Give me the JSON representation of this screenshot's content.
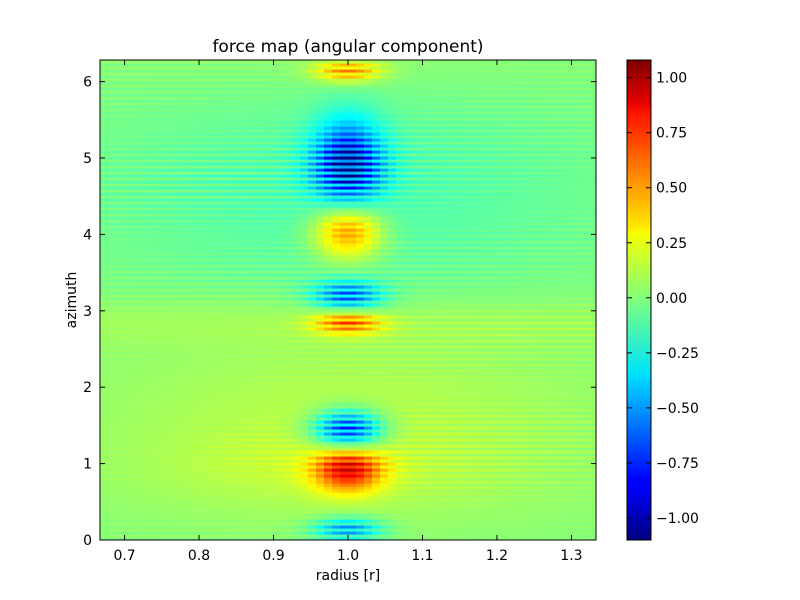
{
  "chart_data": {
    "type": "heatmap",
    "title": "force map (angular component)",
    "xlabel": "radius [r]",
    "ylabel": "azimuth",
    "xlim": [
      0.667,
      1.333
    ],
    "ylim": [
      0,
      6.283
    ],
    "xticks": [
      0.7,
      0.8,
      0.9,
      1.0,
      1.1,
      1.2,
      1.3
    ],
    "xtick_labels": [
      "0.7",
      "0.8",
      "0.9",
      "1.0",
      "1.1",
      "1.2",
      "1.3"
    ],
    "yticks": [
      0,
      1,
      2,
      3,
      4,
      5,
      6
    ],
    "ytick_labels": [
      "0",
      "1",
      "2",
      "3",
      "4",
      "5",
      "6"
    ],
    "colormap": "jet",
    "colorbar": {
      "vmin": -1.1,
      "vmax": 1.08,
      "ticks": [
        -1.0,
        -0.75,
        -0.5,
        -0.25,
        0.0,
        0.25,
        0.5,
        0.75,
        1.0
      ],
      "tick_labels": [
        "−1.00",
        "−0.75",
        "−0.50",
        "−0.25",
        "0.00",
        "0.25",
        "0.50",
        "0.75",
        "1.00"
      ]
    },
    "features": [
      {
        "azimuth_range": [
          0.65,
          1.2
        ],
        "radius_center": 1.0,
        "sign": "positive",
        "peak": 1.0
      },
      {
        "azimuth_range": [
          1.2,
          1.7
        ],
        "radius_center": 1.0,
        "sign": "negative",
        "peak": -1.0
      },
      {
        "azimuth_range": [
          2.7,
          3.0
        ],
        "radius_center": 1.0,
        "sign": "positive",
        "peak": 0.7
      },
      {
        "azimuth_range": [
          3.0,
          3.4
        ],
        "radius_center": 1.0,
        "sign": "negative",
        "peak": -0.7
      },
      {
        "azimuth_range": [
          3.7,
          4.4
        ],
        "radius_center": 1.0,
        "sign": "positive",
        "peak": 0.8
      },
      {
        "azimuth_range": [
          4.4,
          5.5
        ],
        "radius_center": 1.0,
        "sign": "negative",
        "peak": -1.05
      },
      {
        "azimuth_range": [
          0.0,
          0.3
        ],
        "radius_center": 1.0,
        "sign": "negative",
        "peak": -0.6
      },
      {
        "azimuth_range": [
          6.0,
          6.283
        ],
        "radius_center": 1.0,
        "sign": "positive",
        "peak": 0.6
      }
    ],
    "grid": false
  }
}
